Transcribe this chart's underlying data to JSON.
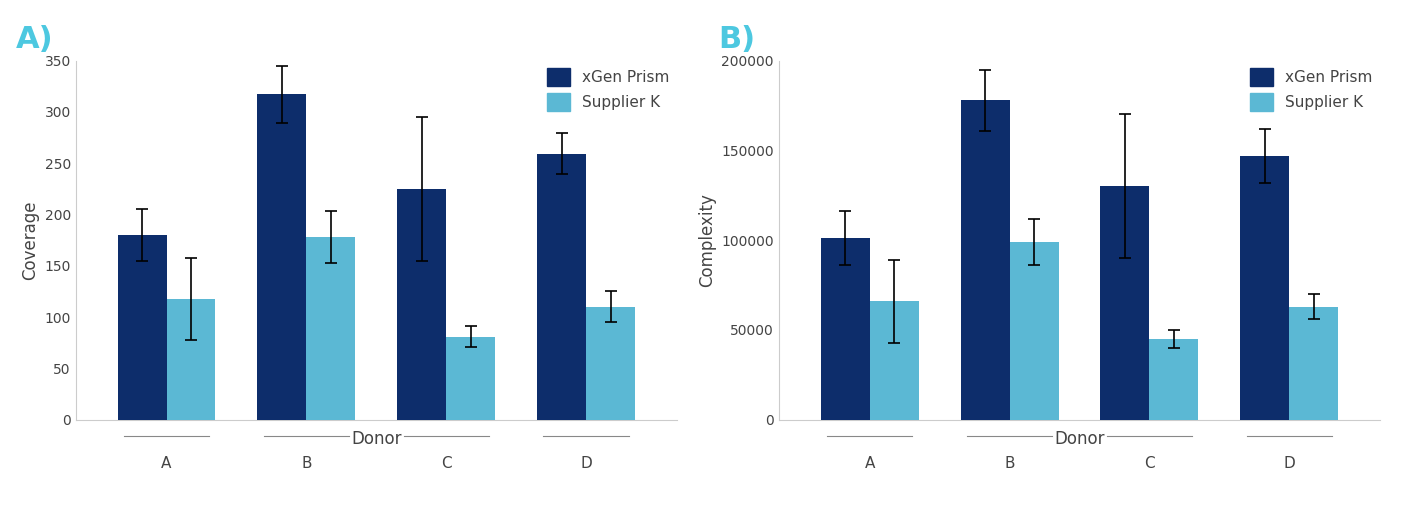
{
  "chart_a": {
    "title": "A)",
    "ylabel": "Coverage",
    "xlabel": "Donor",
    "donors": [
      "A",
      "B",
      "C",
      "D"
    ],
    "xgen_values": [
      180,
      317,
      225,
      259
    ],
    "supplier_values": [
      118,
      178,
      81,
      110
    ],
    "xgen_errors": [
      25,
      28,
      70,
      20
    ],
    "supplier_errors": [
      40,
      25,
      10,
      15
    ],
    "ylim": [
      0,
      350
    ],
    "yticks": [
      0,
      50,
      100,
      150,
      200,
      250,
      300,
      350
    ]
  },
  "chart_b": {
    "title": "B)",
    "ylabel": "Complexity",
    "xlabel": "Donor",
    "donors": [
      "A",
      "B",
      "C",
      "D"
    ],
    "xgen_values": [
      101000,
      178000,
      130000,
      147000
    ],
    "supplier_values": [
      66000,
      99000,
      45000,
      63000
    ],
    "xgen_errors": [
      15000,
      17000,
      40000,
      15000
    ],
    "supplier_errors": [
      23000,
      13000,
      5000,
      7000
    ],
    "ylim": [
      0,
      200000
    ],
    "yticks": [
      0,
      50000,
      100000,
      150000,
      200000
    ]
  },
  "xgen_color": "#0d2d6b",
  "supplier_color": "#5bb8d4",
  "label_color": "#4dc8e0",
  "legend_xgen": "xGen Prism",
  "legend_supplier": "Supplier K",
  "bar_width": 0.35,
  "error_capsize": 4,
  "background_color": "#ffffff"
}
